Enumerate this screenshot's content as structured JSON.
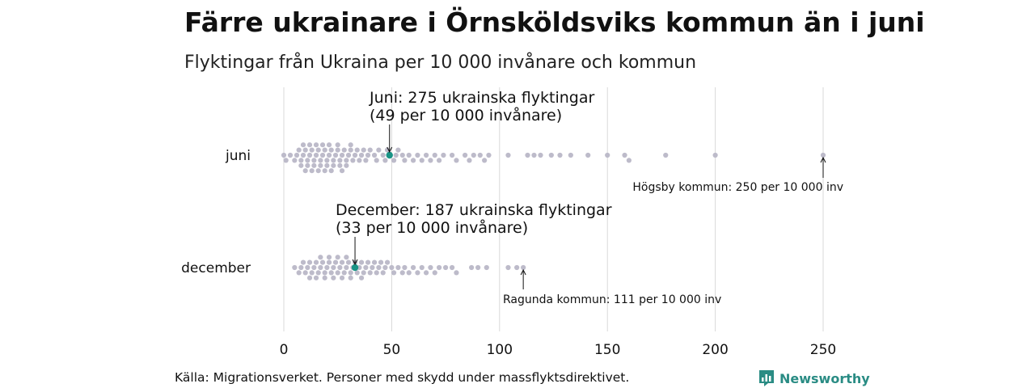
{
  "title": "Färre ukrainare i Örnsköldsviks kommun än i juni",
  "subtitle": "Flyktingar från Ukraina per 10 000 invånare och kommun",
  "source": "Källa: Migrationsverket. Personer med skydd under massflyktsdirektivet.",
  "logo": {
    "text": "Newsworthy",
    "icon": "bar-chart-icon"
  },
  "colors": {
    "dot": "#bdbbca",
    "highlight": "#1a9486",
    "grid": "#d9d9d9",
    "text": "#111111"
  },
  "chart_data": {
    "type": "scatter",
    "subtype": "beeswarm",
    "x_ticks": [
      0,
      50,
      100,
      150,
      200,
      250
    ],
    "xlim": [
      0,
      250
    ],
    "grid": true,
    "categories": [
      "juni",
      "december"
    ],
    "series": [
      {
        "name": "juni",
        "values": [
          0,
          1,
          3,
          5,
          6,
          7,
          8,
          8,
          9,
          9,
          10,
          10,
          11,
          11,
          12,
          12,
          13,
          13,
          14,
          14,
          15,
          15,
          16,
          16,
          17,
          17,
          18,
          18,
          19,
          19,
          20,
          20,
          21,
          21,
          22,
          22,
          23,
          23,
          24,
          25,
          25,
          26,
          26,
          27,
          27,
          28,
          29,
          29,
          30,
          31,
          31,
          32,
          33,
          34,
          35,
          36,
          37,
          38,
          39,
          40,
          42,
          43,
          44,
          46,
          47,
          48,
          49,
          51,
          52,
          53,
          55,
          56,
          58,
          60,
          62,
          64,
          66,
          68,
          70,
          72,
          74,
          78,
          80,
          84,
          86,
          88,
          91,
          93,
          95,
          104,
          113,
          116,
          119,
          124,
          128,
          133,
          141,
          150,
          158,
          160,
          177,
          200,
          250
        ],
        "highlight": {
          "label": "Örnsköldsvik",
          "value": 49
        }
      },
      {
        "name": "december",
        "values": [
          5,
          7,
          8,
          9,
          10,
          11,
          12,
          12,
          13,
          14,
          15,
          15,
          16,
          17,
          17,
          18,
          19,
          19,
          20,
          21,
          21,
          22,
          23,
          23,
          24,
          25,
          25,
          26,
          27,
          27,
          28,
          29,
          29,
          30,
          31,
          31,
          32,
          33,
          34,
          35,
          36,
          36,
          37,
          38,
          39,
          40,
          41,
          42,
          43,
          44,
          45,
          46,
          47,
          48,
          50,
          51,
          53,
          55,
          56,
          58,
          60,
          62,
          64,
          66,
          68,
          70,
          72,
          75,
          78,
          80,
          87,
          90,
          94,
          104,
          108,
          111
        ],
        "highlight": {
          "label": "Örnsköldsvik",
          "value": 33
        }
      }
    ],
    "annotations": [
      {
        "row": "juni",
        "lines": [
          "Juni: 275 ukrainska flyktingar",
          "(49 per 10 000 invånare)"
        ],
        "x": 49
      },
      {
        "row": "juni",
        "lines": [
          "Högsby kommun: 250 per 10 000 inv"
        ],
        "x": 250
      },
      {
        "row": "december",
        "lines": [
          "December: 187 ukrainska flyktingar",
          "(33 per 10 000 invånare)"
        ],
        "x": 33
      },
      {
        "row": "december",
        "lines": [
          "Ragunda kommun: 111 per 10 000 inv"
        ],
        "x": 111
      }
    ]
  }
}
